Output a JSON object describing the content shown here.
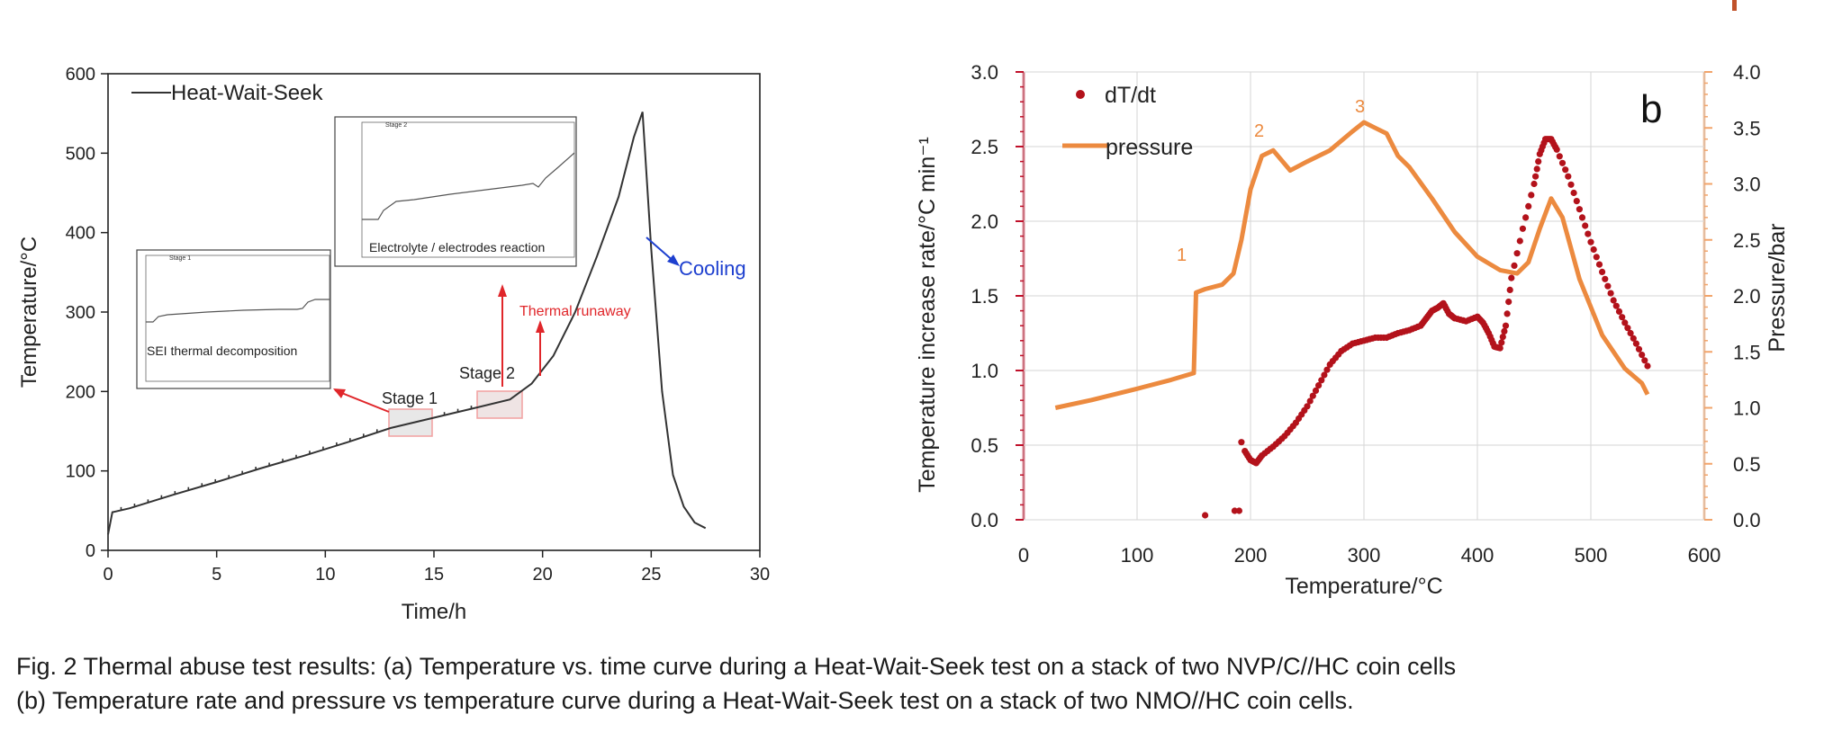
{
  "caption": {
    "line1": "Fig. 2 Thermal abuse test results: (a) Temperature vs. time curve during a Heat-Wait-Seek test on a stack of two NVP/C//HC coin cells",
    "line2": "(b) Temperature rate and pressure vs temperature curve during a Heat-Wait-Seek test on a stack of two NMO//HC coin cells."
  },
  "colors": {
    "accent": "#c0522a",
    "line_a": "#333333",
    "annot_red": "#e0262a",
    "cooling_blue": "#1d3fcf",
    "dtdt": "#b3121b",
    "pressure": "#ec8a3f",
    "axis_b_left": "#c0102a",
    "axis_b_right": "#f2a46a"
  },
  "chart_data": [
    {
      "type": "line",
      "panel": "a",
      "xlabel": "Time/h",
      "ylabel": "Temperature/°C",
      "xlim": [
        0,
        30
      ],
      "ylim": [
        0,
        600
      ],
      "x_ticks": [
        "0",
        "5",
        "10",
        "15",
        "20",
        "25",
        "30"
      ],
      "y_ticks": [
        "0",
        "100",
        "200",
        "300",
        "400",
        "500",
        "600"
      ],
      "legend": "top-left",
      "series": [
        {
          "name": "Heat-Wait-Seek",
          "x": [
            0,
            0.2,
            1,
            3,
            5,
            7,
            9,
            11,
            13,
            15,
            17,
            18.5,
            19.5,
            20.5,
            21.5,
            22.5,
            23.5,
            24.2,
            24.6,
            25,
            25.5,
            26,
            26.5,
            27,
            27.5
          ],
          "y": [
            20,
            48,
            53,
            70,
            86,
            103,
            119,
            136,
            154,
            167,
            180,
            190,
            210,
            245,
            300,
            370,
            445,
            520,
            552,
            380,
            200,
            95,
            55,
            35,
            28
          ]
        }
      ],
      "annotations": {
        "stage1": "Stage 1",
        "stage2": "Stage 2",
        "thermal_runaway": "Thermal runaway",
        "cooling": "Cooling"
      },
      "insets": [
        {
          "title": "Stage 1",
          "label": "SEI thermal decomposition"
        },
        {
          "title": "Stage 2",
          "label": "Electrolyte / electrodes reaction"
        }
      ]
    },
    {
      "type": "scatter",
      "panel": "b",
      "panel_label": "b",
      "xlabel": "Temperature/°C",
      "ylabel": "Temperature increase rate/°C min⁻¹",
      "y2label": "Pressure/bar",
      "xlim": [
        0,
        600
      ],
      "ylim": [
        0,
        3.0
      ],
      "y2lim": [
        0,
        4.0
      ],
      "x_ticks": [
        "0",
        "100",
        "200",
        "300",
        "400",
        "500",
        "600"
      ],
      "y_ticks": [
        "0.0",
        "0.5",
        "1.0",
        "1.5",
        "2.0",
        "2.5",
        "3.0"
      ],
      "y2_ticks": [
        "0.0",
        "0.5",
        "1.0",
        "1.5",
        "2.0",
        "2.5",
        "3.0",
        "3.5",
        "4.0"
      ],
      "legend": "top-left",
      "markers": [
        "1",
        "2",
        "3"
      ],
      "series": [
        {
          "name": "dT/dt",
          "axis": "left",
          "x": [
            160,
            186,
            190,
            192,
            195,
            200,
            205,
            210,
            220,
            230,
            240,
            250,
            260,
            270,
            280,
            290,
            300,
            310,
            320,
            330,
            340,
            350,
            355,
            360,
            365,
            370,
            375,
            380,
            390,
            400,
            405,
            410,
            415,
            420,
            425,
            430,
            440,
            450,
            455,
            460,
            465,
            470,
            480,
            490,
            500,
            510,
            520,
            530,
            540,
            550
          ],
          "y": [
            0.03,
            0.06,
            0.06,
            0.52,
            0.46,
            0.4,
            0.38,
            0.43,
            0.49,
            0.56,
            0.65,
            0.76,
            0.9,
            1.04,
            1.13,
            1.18,
            1.2,
            1.22,
            1.22,
            1.25,
            1.27,
            1.3,
            1.35,
            1.4,
            1.42,
            1.45,
            1.38,
            1.35,
            1.33,
            1.36,
            1.32,
            1.25,
            1.16,
            1.15,
            1.3,
            1.62,
            1.95,
            2.25,
            2.45,
            2.55,
            2.55,
            2.48,
            2.3,
            2.08,
            1.86,
            1.66,
            1.47,
            1.32,
            1.18,
            1.03
          ]
        },
        {
          "name": "pressure",
          "axis": "right",
          "x": [
            28,
            60,
            100,
            130,
            150,
            152,
            160,
            175,
            185,
            192,
            200,
            210,
            220,
            235,
            250,
            270,
            290,
            300,
            310,
            320,
            330,
            340,
            360,
            380,
            400,
            420,
            435,
            445,
            455,
            465,
            475,
            490,
            510,
            530,
            545,
            550
          ],
          "y": [
            1.0,
            1.07,
            1.17,
            1.25,
            1.31,
            2.03,
            2.06,
            2.1,
            2.2,
            2.5,
            2.95,
            3.25,
            3.3,
            3.12,
            3.2,
            3.3,
            3.47,
            3.55,
            3.5,
            3.45,
            3.25,
            3.15,
            2.87,
            2.57,
            2.35,
            2.23,
            2.2,
            2.3,
            2.6,
            2.87,
            2.7,
            2.15,
            1.65,
            1.35,
            1.22,
            1.12
          ]
        }
      ]
    }
  ]
}
